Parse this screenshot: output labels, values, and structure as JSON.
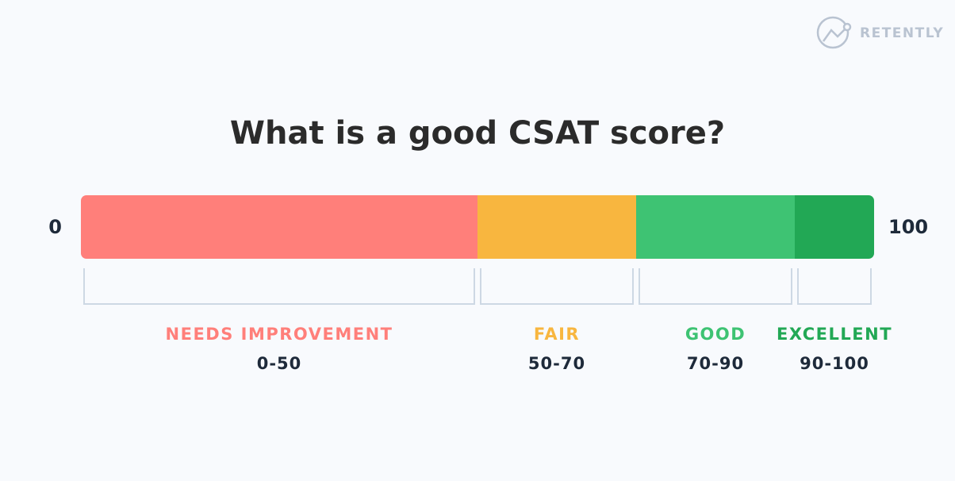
{
  "chart_data": {
    "type": "stacked-hbar",
    "title": "What is a good CSAT score?",
    "brand": "RETENTLY",
    "xlim": [
      0,
      100
    ],
    "xticks": [
      0,
      100
    ],
    "series": [
      {
        "name": "NEEDS IMPROVEMENT",
        "color": "#ff7f7a",
        "values": [
          50
        ],
        "value_labels": [
          "0-50"
        ]
      },
      {
        "name": "FAIR",
        "color": "#f8b63f",
        "values": [
          20
        ],
        "value_labels": [
          "50-70"
        ]
      },
      {
        "name": "GOOD",
        "color": "#3ec373",
        "values": [
          20
        ],
        "value_labels": [
          "70-90"
        ]
      },
      {
        "name": "EXCELLENT",
        "color": "#22a855",
        "values": [
          10
        ],
        "value_labels": [
          "90-100"
        ]
      }
    ]
  }
}
